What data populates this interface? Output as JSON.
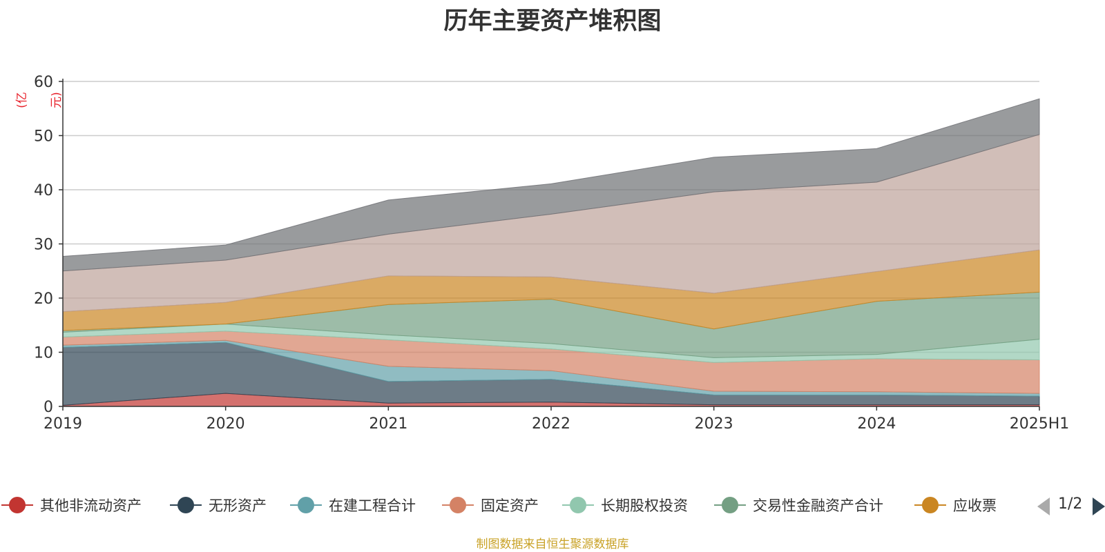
{
  "title": "历年主要资产堆积图",
  "unit_label": "(亿元)",
  "source_text": "制图数据来自恒生聚源数据库",
  "legend": {
    "page_indicator": "1/2",
    "visible_series": [
      "其他非流动资产",
      "无形资产",
      "在建工程合计",
      "固定资产",
      "长期股权投资",
      "交易性金融资产合计",
      "应收票"
    ]
  },
  "chart_data": {
    "type": "area",
    "stacked": true,
    "x": [
      "2019",
      "2020",
      "2021",
      "2022",
      "2023",
      "2024",
      "2025H1"
    ],
    "ylim": [
      0,
      60
    ],
    "yticks": [
      0,
      10,
      20,
      30,
      40,
      50,
      60
    ],
    "grid": true,
    "legend_position": "bottom",
    "series": [
      {
        "name": "其他非流动资产",
        "color": "#c23531",
        "values": [
          0.2,
          2.4,
          0.6,
          0.8,
          0.3,
          0.3,
          0.3
        ]
      },
      {
        "name": "无形资产",
        "color": "#2f4554",
        "values": [
          10.7,
          9.4,
          4.0,
          4.2,
          1.8,
          1.8,
          1.6
        ]
      },
      {
        "name": "在建工程合计",
        "color": "#61a0a8",
        "values": [
          0.4,
          0.4,
          2.8,
          1.6,
          0.7,
          0.6,
          0.5
        ]
      },
      {
        "name": "固定资产",
        "color": "#d48265",
        "values": [
          1.5,
          1.7,
          4.9,
          4.0,
          5.3,
          6.1,
          6.2
        ]
      },
      {
        "name": "长期股权投资",
        "color": "#91c7ae",
        "values": [
          0.9,
          1.3,
          0.9,
          1.0,
          0.9,
          0.8,
          3.8
        ]
      },
      {
        "name": "交易性金融资产合计",
        "color": "#749f83",
        "values": [
          0.3,
          0.0,
          5.6,
          8.2,
          5.3,
          9.8,
          8.7
        ]
      },
      {
        "name": "应收票",
        "color": "#ca8622",
        "values": [
          3.5,
          4.0,
          5.3,
          4.1,
          6.6,
          5.5,
          7.8
        ]
      },
      {
        "color": "#bda29a",
        "values": [
          7.5,
          7.8,
          7.7,
          11.6,
          18.7,
          16.5,
          21.3
        ]
      },
      {
        "color": "#6e7074",
        "values": [
          2.7,
          2.8,
          6.3,
          5.6,
          6.4,
          6.2,
          6.6
        ]
      }
    ]
  }
}
